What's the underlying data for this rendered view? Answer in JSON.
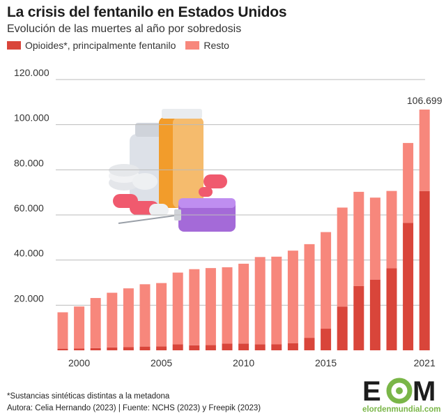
{
  "header": {
    "title": "La crisis del fentanilo en Estados Unidos",
    "subtitle": "Evolución de las muertes al año por sobredosis"
  },
  "footer": {
    "note": "*Sustancias sintéticas distintas a la metadona",
    "source": "Autora: Celia Hernando (2023) | Fuente: NCHS (2023) y Freepik (2023)"
  },
  "logo": {
    "mark": "EOM",
    "url_text": "elordenmundial.com"
  },
  "colors": {
    "opioids": "#d9453a",
    "rest": "#f7877c",
    "grid": "#bbbbbb"
  },
  "chart_data": {
    "type": "bar",
    "stacked": true,
    "x": [
      1999,
      2000,
      2001,
      2002,
      2003,
      2004,
      2005,
      2006,
      2007,
      2008,
      2009,
      2010,
      2011,
      2012,
      2013,
      2014,
      2015,
      2016,
      2017,
      2018,
      2019,
      2020,
      2021
    ],
    "series": [
      {
        "name": "Opioides*, principalmente fentanilo",
        "color": "#d9453a",
        "values": [
          730,
          780,
          960,
          1300,
          1400,
          1660,
          1740,
          2700,
          2210,
          2300,
          2950,
          3000,
          2670,
          2630,
          3100,
          5540,
          9580,
          19410,
          28470,
          31340,
          36360,
          56520,
          70600
        ]
      },
      {
        "name": "Resto",
        "color": "#f7877c",
        "values": [
          16120,
          18640,
          22220,
          24210,
          26060,
          27620,
          28070,
          31750,
          33750,
          34150,
          33850,
          35380,
          38670,
          38870,
          41080,
          41510,
          42820,
          43850,
          41770,
          36340,
          34270,
          35370,
          36099
        ]
      }
    ],
    "totals": [
      16850,
      19420,
      23180,
      25510,
      27460,
      29280,
      29810,
      34450,
      35960,
      36450,
      36800,
      38380,
      41340,
      41500,
      44180,
      47050,
      52400,
      63260,
      70240,
      67680,
      70630,
      91890,
      106699
    ],
    "highlight_label": {
      "year": 2021,
      "text": "106.699"
    },
    "xticks": [
      2000,
      2005,
      2010,
      2015,
      2021
    ],
    "ylim": [
      0,
      120000
    ],
    "yticks": [
      20000,
      40000,
      60000,
      80000,
      100000,
      120000
    ],
    "ytick_labels": [
      "20.000",
      "40.000",
      "60.000",
      "80.000",
      "100.000",
      "120.000"
    ],
    "grid": true,
    "legend_position": "top-left"
  }
}
